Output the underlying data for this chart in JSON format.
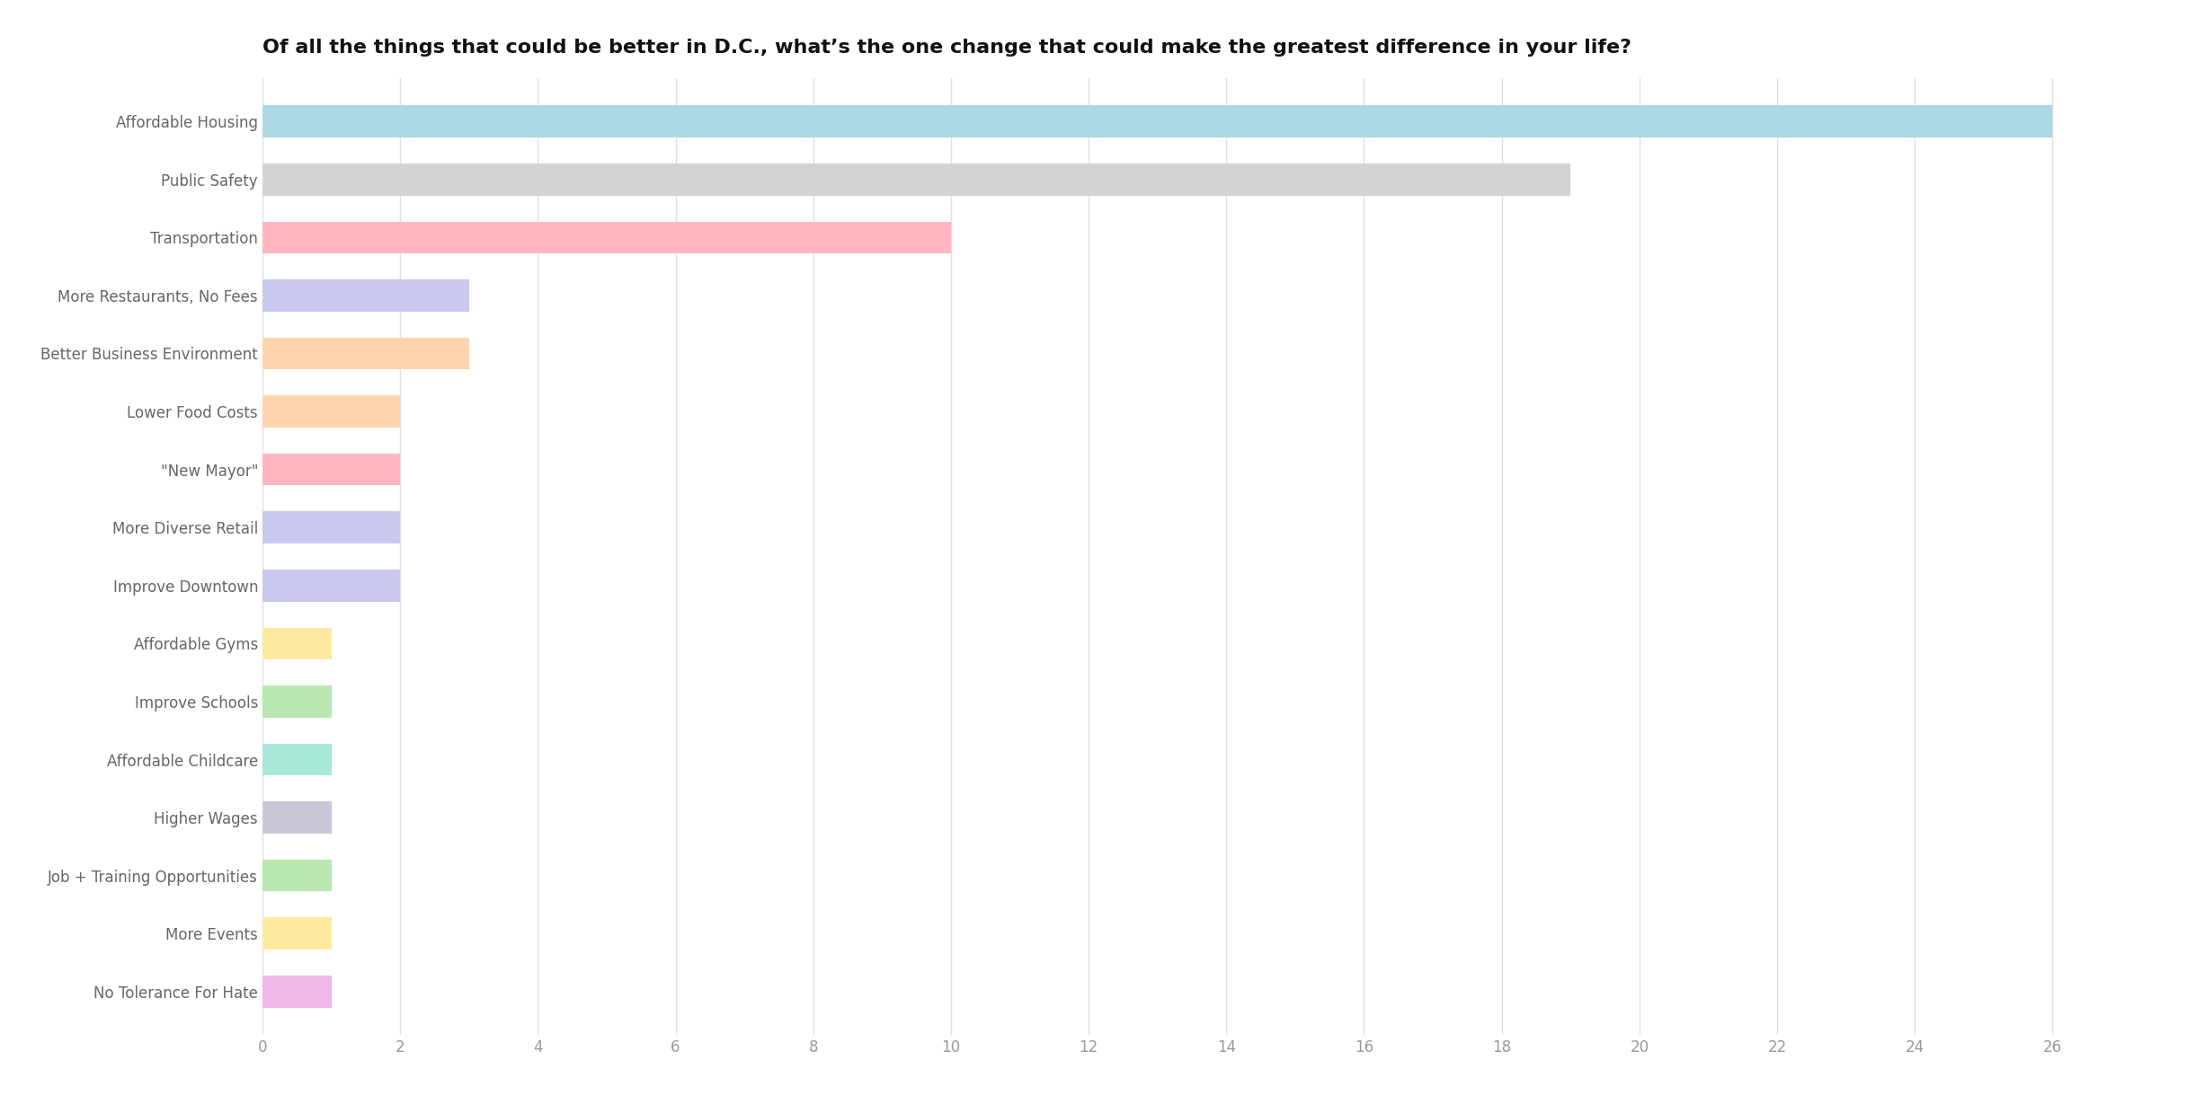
{
  "title": "Of all the things that could be better in D.C., what’s the one change that could make the greatest difference in your life?",
  "categories": [
    "Affordable Housing",
    "Public Safety",
    "Transportation",
    "More Restaurants, No Fees",
    "Better Business Environment",
    "Lower Food Costs",
    "\"New Mayor\"",
    "More Diverse Retail",
    "Improve Downtown",
    "Affordable Gyms",
    "Improve Schools",
    "Affordable Childcare",
    "Higher Wages",
    "Job + Training Opportunities",
    "More Events",
    "No Tolerance For Hate"
  ],
  "values": [
    26,
    19,
    10,
    3,
    3,
    2,
    2,
    2,
    2,
    1,
    1,
    1,
    1,
    1,
    1,
    1
  ],
  "colors": [
    "#add8e6",
    "#d3d3d3",
    "#ffb6c1",
    "#c8c8f0",
    "#ffd5b0",
    "#ffd5b0",
    "#ffb6c1",
    "#c8c8f0",
    "#c8c8f0",
    "#ffe8a0",
    "#b8e8b0",
    "#a8e8d8",
    "#c8c8d8",
    "#b8e8b0",
    "#ffe8a0",
    "#f0b8e8"
  ],
  "xlim": [
    0,
    27
  ],
  "xticks": [
    0,
    2,
    4,
    6,
    8,
    10,
    12,
    14,
    16,
    18,
    20,
    22,
    24,
    26
  ],
  "background_color": "#ffffff",
  "title_fontsize": 16,
  "label_fontsize": 12,
  "tick_fontsize": 12,
  "bar_height": 0.55
}
